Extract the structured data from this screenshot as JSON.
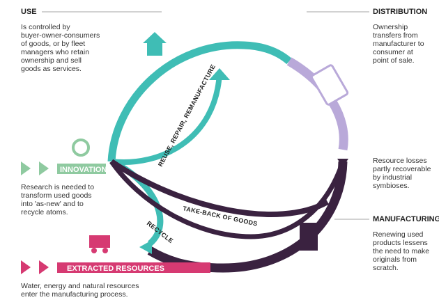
{
  "use": {
    "title": "USE",
    "lines": [
      "Is controlled by",
      "buyer-owner-consumers",
      "of goods, or by fleet",
      "managers who retain",
      "ownership and sell",
      "goods as services."
    ]
  },
  "distribution": {
    "title": "DISTRIBUTION",
    "lines": [
      "Ownership",
      "transfers from",
      "manufacturer to",
      "consumer at",
      "point of sale."
    ]
  },
  "losses": {
    "lines": [
      "Resource losses",
      "partly recoverable",
      "by industrial",
      "symbioses."
    ]
  },
  "manufacturing": {
    "title": "MANUFACTURING",
    "lines": [
      "Renewing used",
      "products lessens",
      "the need to make",
      "originals from",
      "scratch."
    ]
  },
  "innovation": {
    "title": "INNOVATION",
    "lines": [
      "Research is needed to",
      "transform used goods",
      "into 'as-new' and to",
      "recycle atoms."
    ]
  },
  "extracted": {
    "title": "EXTRACTED RESOURCES",
    "lines": [
      "Water, energy and natural resources",
      "enter the manufacturing process."
    ]
  },
  "loops": {
    "reuse": "REUSE, REPAIR, REMANUFACTURE",
    "takeback": "TAKE-BACK OF GOODS",
    "recycle": "RECYCLE"
  }
}
